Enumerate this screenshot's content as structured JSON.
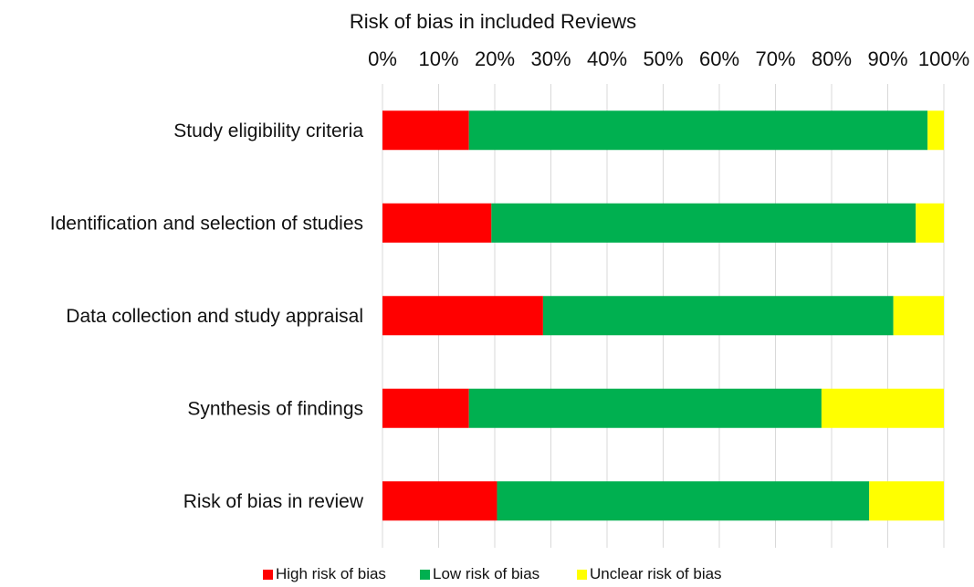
{
  "chart_data": {
    "type": "bar",
    "stacked": true,
    "orientation": "horizontal",
    "title": "Risk of bias in included Reviews",
    "categories": [
      "Study eligibility criteria",
      "Identification and selection of studies",
      "Data collection and study appraisal",
      "Synthesis of findings",
      "Risk of bias in review"
    ],
    "series": [
      {
        "name": "High risk of bias",
        "color": "#ff0000",
        "values": [
          15.4,
          19.4,
          28.6,
          15.4,
          20.4
        ]
      },
      {
        "name": "Low risk of bias",
        "color": "#00b050",
        "values": [
          81.7,
          75.6,
          62.4,
          62.8,
          66.3
        ]
      },
      {
        "name": "Unclear risk of bias",
        "color": "#ffff00",
        "values": [
          2.9,
          5.0,
          9.0,
          21.8,
          13.3
        ]
      }
    ],
    "xlim": [
      0,
      100
    ],
    "x_ticks": [
      "0%",
      "10%",
      "20%",
      "30%",
      "40%",
      "50%",
      "60%",
      "70%",
      "80%",
      "90%",
      "100%"
    ],
    "x_axis_position": "top",
    "grid": true,
    "legend_position": "bottom"
  }
}
